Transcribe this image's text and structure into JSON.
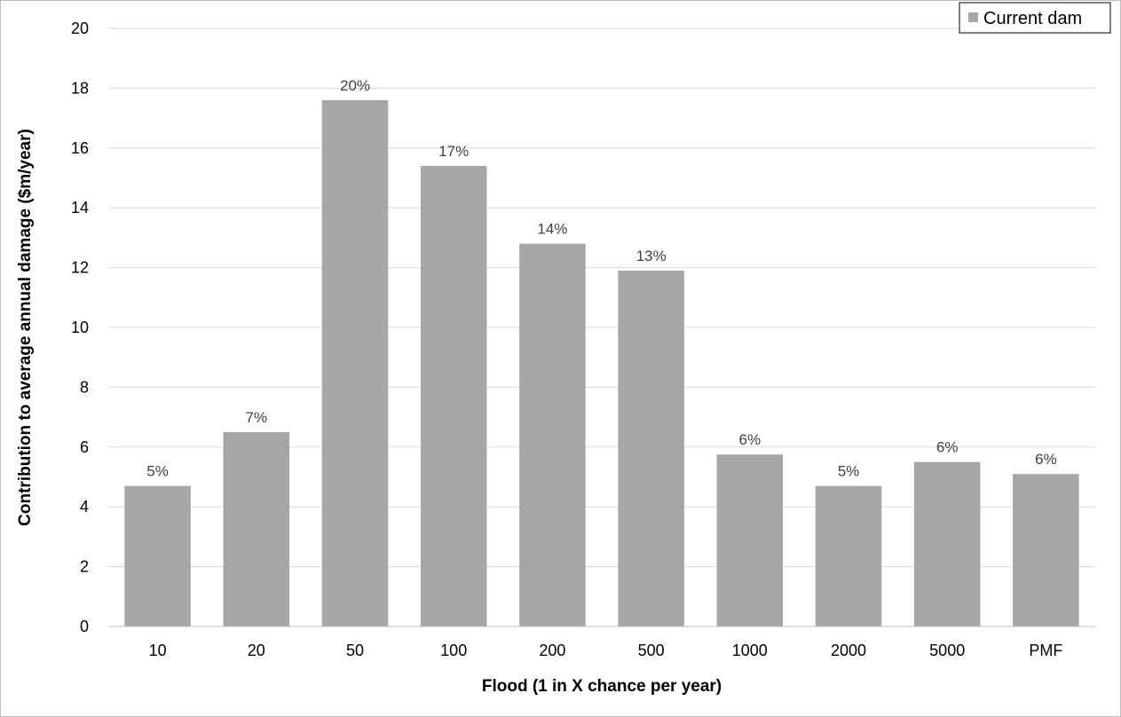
{
  "chart_data": {
    "type": "bar",
    "categories": [
      "10",
      "20",
      "50",
      "100",
      "200",
      "500",
      "1000",
      "2000",
      "5000",
      "PMF"
    ],
    "series": [
      {
        "name": "Current dam",
        "values": [
          4.7,
          6.5,
          17.6,
          15.4,
          12.8,
          11.9,
          5.75,
          4.7,
          5.5,
          5.1
        ],
        "data_labels": [
          "5%",
          "7%",
          "20%",
          "17%",
          "14%",
          "13%",
          "6%",
          "5%",
          "6%",
          "6%"
        ]
      }
    ],
    "title": "",
    "xlabel": "Flood (1 in X chance per year)",
    "ylabel": "Contribution to average annual damage ($m/year)",
    "ylim": [
      0,
      20
    ],
    "yticks": [
      0,
      2,
      4,
      6,
      8,
      10,
      12,
      14,
      16,
      18,
      20
    ],
    "grid": true,
    "legend": "top-right",
    "colors": {
      "bar": "#a6a6a6",
      "grid": "#d9d9d9",
      "axis": "#bfbfbf"
    }
  }
}
